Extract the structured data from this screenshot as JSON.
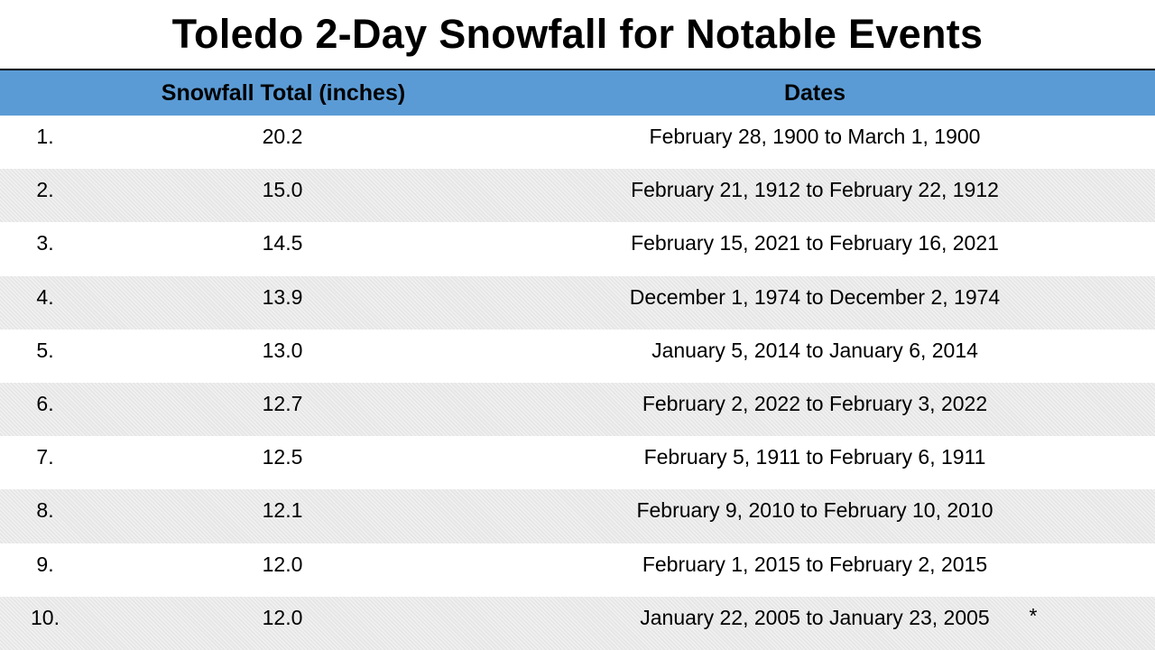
{
  "title": "Toledo 2-Day Snowfall for Notable Events",
  "table": {
    "headers": {
      "total": "Snowfall Total (inches)",
      "dates": "Dates"
    },
    "rows": [
      {
        "rank": "1.",
        "total": "20.2",
        "dates": "February 28, 1900 to March 1, 1900",
        "note": ""
      },
      {
        "rank": "2.",
        "total": "15.0",
        "dates": "February 21, 1912 to February 22, 1912",
        "note": ""
      },
      {
        "rank": "3.",
        "total": "14.5",
        "dates": "February 15, 2021 to February 16, 2021",
        "note": ""
      },
      {
        "rank": "4.",
        "total": "13.9",
        "dates": "December 1, 1974 to December 2, 1974",
        "note": ""
      },
      {
        "rank": "5.",
        "total": "13.0",
        "dates": "January 5, 2014 to January 6, 2014",
        "note": ""
      },
      {
        "rank": "6.",
        "total": "12.7",
        "dates": "February 2, 2022 to February 3, 2022",
        "note": ""
      },
      {
        "rank": "7.",
        "total": "12.5",
        "dates": "February 5, 1911 to February 6, 1911",
        "note": ""
      },
      {
        "rank": "8.",
        "total": "12.1",
        "dates": "February 9, 2010 to February 10, 2010",
        "note": ""
      },
      {
        "rank": "9.",
        "total": "12.0",
        "dates": "February 1, 2015 to February 2, 2015",
        "note": ""
      },
      {
        "rank": "10.",
        "total": "12.0",
        "dates": "January 22, 2005 to January 23, 2005",
        "note": "*"
      }
    ]
  },
  "colors": {
    "header_bg": "#5b9bd5",
    "stripe_bg": "#e6e6e6"
  }
}
